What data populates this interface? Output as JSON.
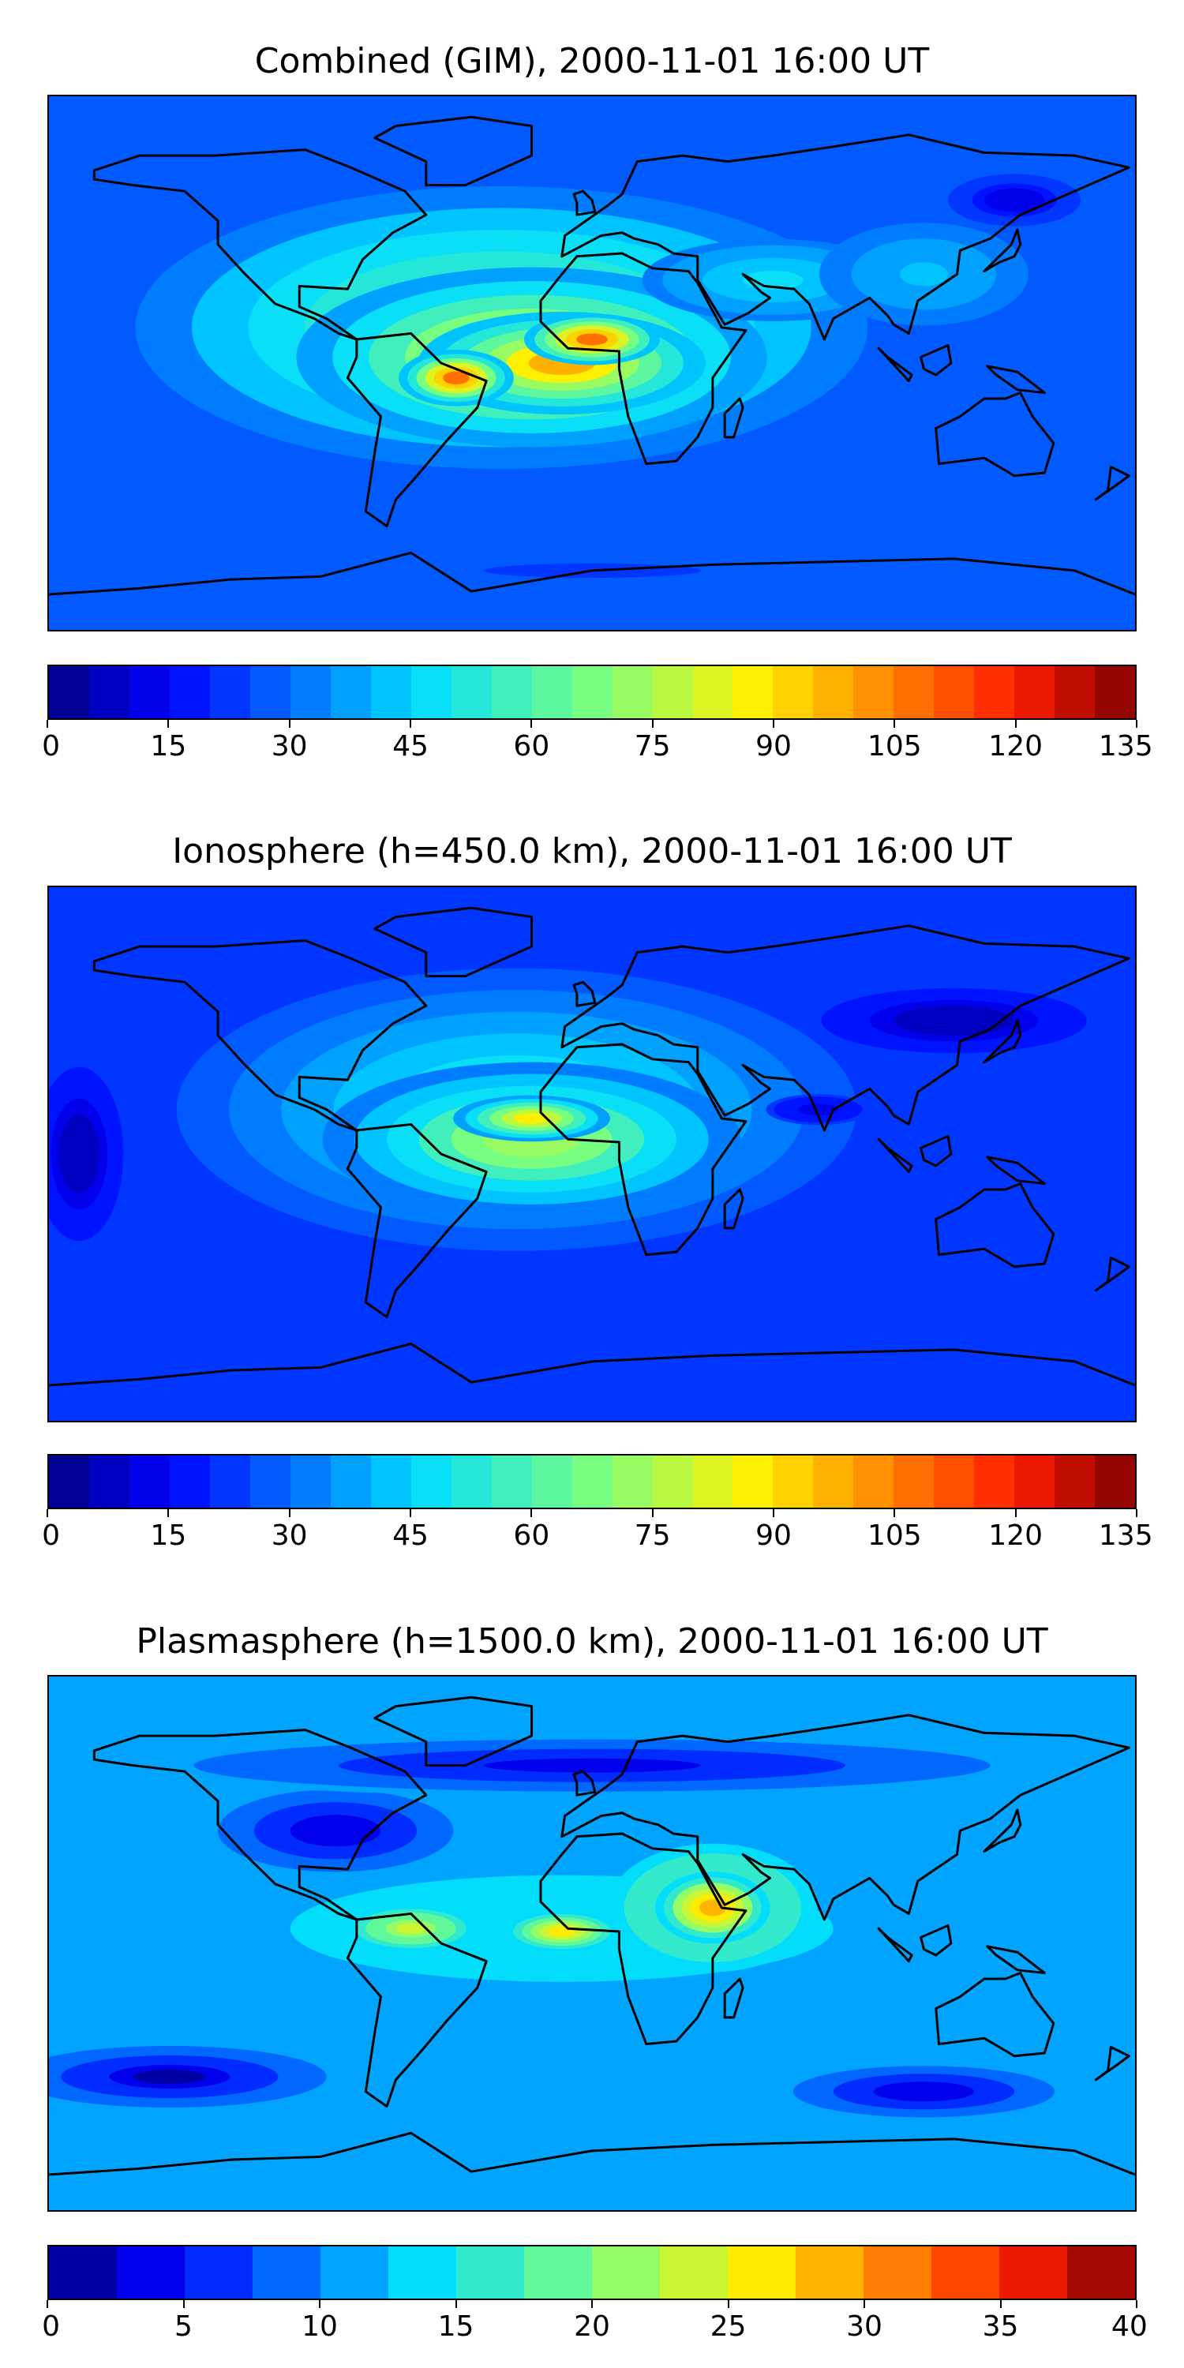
{
  "panels": [
    {
      "title": "Combined (GIM), 2000-11-01 16:00 UT",
      "colorbar": {
        "min": 0,
        "max": 135,
        "levels": 27,
        "tick_labels": [
          "0",
          "15",
          "30",
          "45",
          "60",
          "75",
          "90",
          "105",
          "120",
          "135"
        ]
      },
      "map": {
        "projection": "plate carrée, global",
        "background_level_fraction": 0.22,
        "blobs": [
          {
            "lon": -30,
            "lat": 12,
            "rx": 140,
            "ry": 55,
            "f": 0.45
          },
          {
            "lon": -20,
            "lat": 2,
            "rx": 90,
            "ry": 35,
            "f": 0.62
          },
          {
            "lon": -10,
            "lat": 0,
            "rx": 55,
            "ry": 20,
            "f": 0.72
          },
          {
            "lon": -45,
            "lat": -5,
            "rx": 22,
            "ry": 11,
            "f": 0.78
          },
          {
            "lon": 0,
            "lat": 8,
            "rx": 26,
            "ry": 10,
            "f": 0.8
          },
          {
            "lon": 60,
            "lat": 28,
            "rx": 50,
            "ry": 16,
            "f": 0.34
          },
          {
            "lon": 110,
            "lat": 30,
            "rx": 40,
            "ry": 20,
            "f": 0.3
          },
          {
            "lon": 140,
            "lat": 55,
            "rx": 30,
            "ry": 12,
            "f": 0.08
          },
          {
            "lon": 0,
            "lat": -70,
            "rx": 180,
            "ry": 12,
            "f": 0.18
          }
        ]
      }
    },
    {
      "title": "Ionosphere  (h=450.0 km), 2000-11-01 16:00 UT",
      "colorbar": {
        "min": 0,
        "max": 135,
        "levels": 27,
        "tick_labels": [
          "0",
          "15",
          "30",
          "45",
          "60",
          "75",
          "90",
          "105",
          "120",
          "135"
        ]
      },
      "map": {
        "projection": "plate carrée, global",
        "background_level_fraction": 0.18,
        "blobs": [
          {
            "lon": -25,
            "lat": 15,
            "rx": 130,
            "ry": 55,
            "f": 0.4
          },
          {
            "lon": -20,
            "lat": 5,
            "rx": 80,
            "ry": 30,
            "f": 0.55
          },
          {
            "lon": -20,
            "lat": 12,
            "rx": 30,
            "ry": 9,
            "f": 0.66
          },
          {
            "lon": -170,
            "lat": 0,
            "rx": 20,
            "ry": 40,
            "f": 0.05
          },
          {
            "lon": 120,
            "lat": 45,
            "rx": 60,
            "ry": 15,
            "f": 0.05
          },
          {
            "lon": 75,
            "lat": 15,
            "rx": 20,
            "ry": 6,
            "f": 0.08
          }
        ]
      }
    },
    {
      "title": "Plasmasphere (h=1500.0 km), 2000-11-01 16:00 UT",
      "colorbar": {
        "min": 0,
        "max": 40,
        "levels": 16,
        "tick_labels": [
          "0",
          "5",
          "10",
          "15",
          "20",
          "25",
          "30",
          "35",
          "40"
        ]
      },
      "map": {
        "projection": "plate carrée, global",
        "background_level_fraction": 0.28,
        "blobs": [
          {
            "lon": -10,
            "lat": 5,
            "rx": 150,
            "ry": 30,
            "f": 0.36
          },
          {
            "lon": 40,
            "lat": 12,
            "rx": 40,
            "ry": 25,
            "f": 0.58
          },
          {
            "lon": 40,
            "lat": 12,
            "rx": 22,
            "ry": 14,
            "f": 0.72
          },
          {
            "lon": -60,
            "lat": 5,
            "rx": 25,
            "ry": 9,
            "f": 0.6
          },
          {
            "lon": -10,
            "lat": 4,
            "rx": 22,
            "ry": 8,
            "f": 0.68
          },
          {
            "lon": -85,
            "lat": 38,
            "rx": 45,
            "ry": 16,
            "f": 0.08
          },
          {
            "lon": -140,
            "lat": -45,
            "rx": 60,
            "ry": 12,
            "f": 0.05
          },
          {
            "lon": 110,
            "lat": -50,
            "rx": 50,
            "ry": 10,
            "f": 0.08
          },
          {
            "lon": 0,
            "lat": 60,
            "rx": 180,
            "ry": 12,
            "f": 0.12
          }
        ]
      }
    }
  ]
}
